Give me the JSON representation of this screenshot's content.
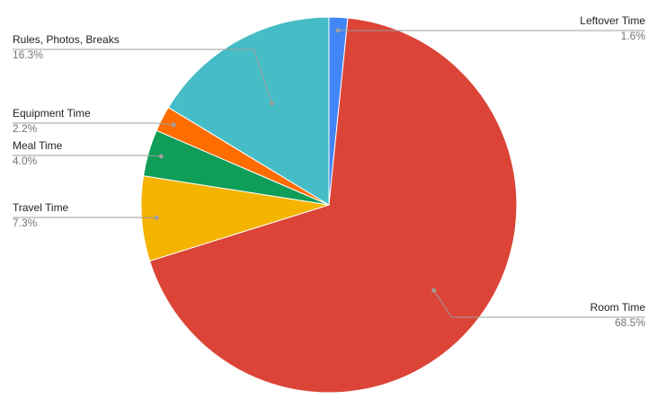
{
  "chart_data": {
    "type": "pie",
    "title": "",
    "slices": [
      {
        "label": "Leftover Time",
        "value": 1.6,
        "value_label": "1.6%",
        "color": "#4285f4"
      },
      {
        "label": "Room Time",
        "value": 68.5,
        "value_label": "68.5%",
        "color": "#db4437"
      },
      {
        "label": "Travel Time",
        "value": 7.3,
        "value_label": "7.3%",
        "color": "#f4b400"
      },
      {
        "label": "Meal Time",
        "value": 4.0,
        "value_label": "4.0%",
        "color": "#0f9d58"
      },
      {
        "label": "Equipment Time",
        "value": 2.2,
        "value_label": "2.2%",
        "color": "#ff6d00"
      },
      {
        "label": "Rules, Photos, Breaks",
        "value": 16.3,
        "value_label": "16.3%",
        "color": "#46bdc6"
      }
    ],
    "start_angle": "12 o'clock",
    "direction": "clockwise",
    "legend": "none (labels beside slices)"
  }
}
